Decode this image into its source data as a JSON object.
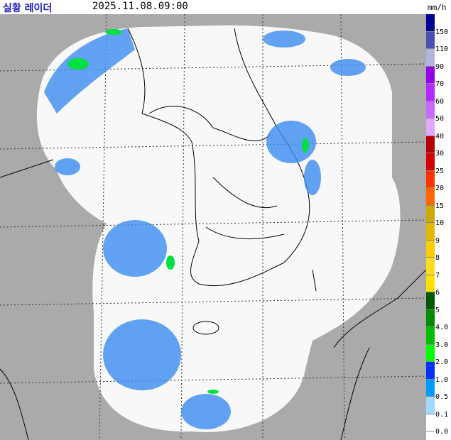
{
  "header": {
    "title": "실황 레이더",
    "time": "2025.11.08.09:00",
    "unit": "mm/h"
  },
  "legend": [
    {
      "label": "150",
      "color": "#000390"
    },
    {
      "label": "110",
      "color": "#4c4eb1"
    },
    {
      "label": "90",
      "color": "#b3b4de"
    },
    {
      "label": "70",
      "color": "#9300e4"
    },
    {
      "label": "60",
      "color": "#b329ff"
    },
    {
      "label": "50",
      "color": "#c969ff"
    },
    {
      "label": "40",
      "color": "#e0a9ff"
    },
    {
      "label": "30",
      "color": "#b40000"
    },
    {
      "label": "25",
      "color": "#d20000"
    },
    {
      "label": "20",
      "color": "#ff3200"
    },
    {
      "label": "15",
      "color": "#ff6600"
    },
    {
      "label": "10",
      "color": "#ccaa00"
    },
    {
      "label": "9",
      "color": "#e0b900"
    },
    {
      "label": "8",
      "color": "#f9cd00"
    },
    {
      "label": "7",
      "color": "#ffdc1f"
    },
    {
      "label": "6",
      "color": "#ffe100"
    },
    {
      "label": "5",
      "color": "#005a00"
    },
    {
      "label": "4.0",
      "color": "#008c00"
    },
    {
      "label": "3.0",
      "color": "#00be00"
    },
    {
      "label": "2.0",
      "color": "#00ff00"
    },
    {
      "label": "1.0",
      "color": "#0033f5"
    },
    {
      "label": "0.5",
      "color": "#009bff"
    },
    {
      "label": "0.1",
      "color": "#a0d8ff"
    },
    {
      "label": "0.0",
      "color": "#ffffff"
    }
  ]
}
